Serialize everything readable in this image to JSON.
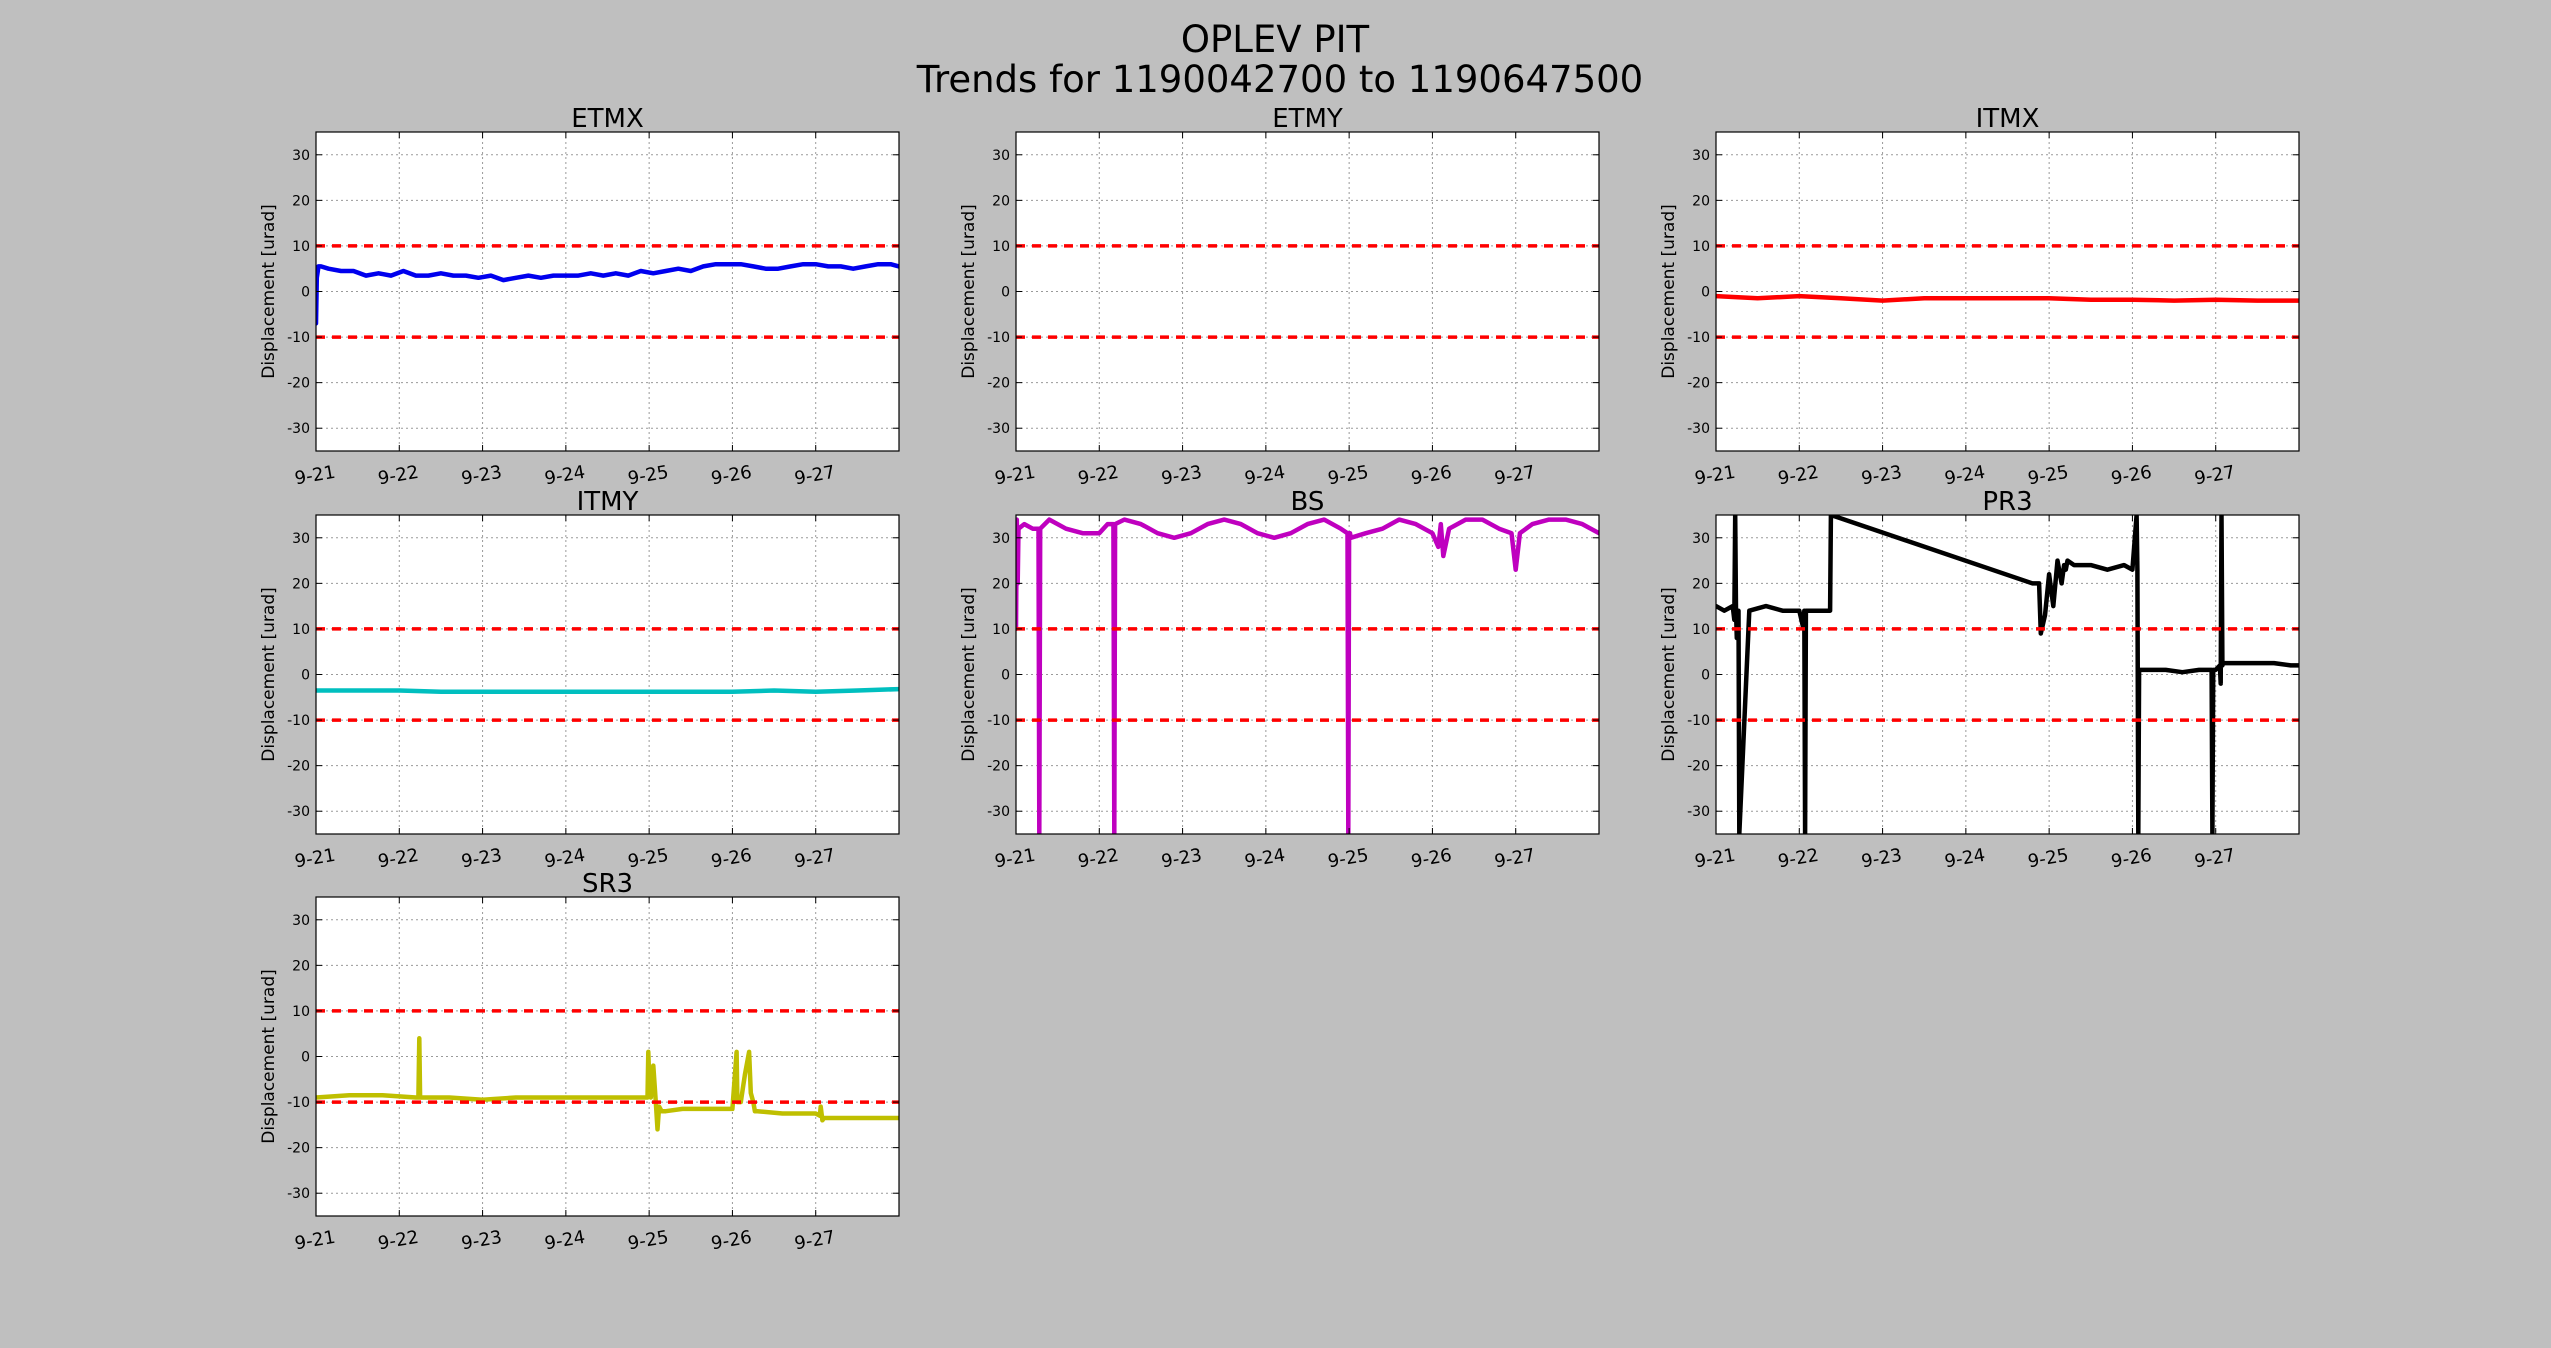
{
  "figure": {
    "title": "OPLEV PIT",
    "subtitle": "Trends for 1190042700 to 1190647500",
    "background": "#bfbfbf",
    "threshold_color": "#ff0000"
  },
  "chart_data": [
    {
      "type": "line",
      "title": "ETMX",
      "ylabel": "Displacement [urad]",
      "xlabel": "",
      "x_tick_labels": [
        "9-21",
        "9-22",
        "9-23",
        "9-24",
        "9-25",
        "9-26",
        "9-27"
      ],
      "x_ticks": [
        0,
        1,
        2,
        3,
        4,
        5,
        6
      ],
      "xlim": [
        0,
        7
      ],
      "x_unit": "days since 9-21",
      "ylim": [
        -35,
        35
      ],
      "y_ticks": [
        -30,
        -20,
        -10,
        0,
        10,
        20,
        30
      ],
      "grid": true,
      "thresholds": [
        10,
        -10
      ],
      "series": [
        {
          "color": "#0000ee",
          "x": [
            0,
            0.01,
            0.03,
            0.06,
            0.15,
            0.3,
            0.45,
            0.6,
            0.75,
            0.9,
            1.05,
            1.2,
            1.35,
            1.5,
            1.65,
            1.8,
            1.95,
            2.1,
            2.25,
            2.4,
            2.55,
            2.7,
            2.85,
            3.0,
            3.15,
            3.3,
            3.45,
            3.6,
            3.75,
            3.9,
            4.05,
            4.2,
            4.35,
            4.5,
            4.65,
            4.8,
            4.95,
            5.1,
            5.25,
            5.4,
            5.55,
            5.7,
            5.85,
            6.0,
            6.15,
            6.3,
            6.45,
            6.6,
            6.75,
            6.9,
            7.0
          ],
          "y": [
            -7,
            3,
            5.5,
            5.5,
            5,
            4.5,
            4.5,
            3.5,
            4,
            3.5,
            4.5,
            3.5,
            3.5,
            4,
            3.5,
            3.5,
            3,
            3.5,
            2.5,
            3,
            3.5,
            3,
            3.5,
            3.5,
            3.5,
            4,
            3.5,
            4,
            3.5,
            4.5,
            4,
            4.5,
            5,
            4.5,
            5.5,
            6,
            6,
            6,
            5.5,
            5,
            5,
            5.5,
            6,
            6,
            5.5,
            5.5,
            5,
            5.5,
            6,
            6,
            5.5
          ]
        }
      ]
    },
    {
      "type": "line",
      "title": "ETMY",
      "ylabel": "Displacement [urad]",
      "xlabel": "",
      "x_tick_labels": [
        "9-21",
        "9-22",
        "9-23",
        "9-24",
        "9-25",
        "9-26",
        "9-27"
      ],
      "x_ticks": [
        0,
        1,
        2,
        3,
        4,
        5,
        6
      ],
      "xlim": [
        0,
        7
      ],
      "x_unit": "days since 9-21",
      "ylim": [
        -35,
        35
      ],
      "y_ticks": [
        -30,
        -20,
        -10,
        0,
        10,
        20,
        30
      ],
      "grid": true,
      "thresholds": [
        10,
        -10
      ],
      "series": []
    },
    {
      "type": "line",
      "title": "ITMX",
      "ylabel": "Displacement [urad]",
      "xlabel": "",
      "x_tick_labels": [
        "9-21",
        "9-22",
        "9-23",
        "9-24",
        "9-25",
        "9-26",
        "9-27"
      ],
      "x_ticks": [
        0,
        1,
        2,
        3,
        4,
        5,
        6
      ],
      "xlim": [
        0,
        7
      ],
      "x_unit": "days since 9-21",
      "ylim": [
        -35,
        35
      ],
      "y_ticks": [
        -30,
        -20,
        -10,
        0,
        10,
        20,
        30
      ],
      "grid": true,
      "thresholds": [
        10,
        -10
      ],
      "series": [
        {
          "color": "#ff0000",
          "x": [
            0,
            0.5,
            1,
            1.5,
            2,
            2.5,
            3,
            3.5,
            4,
            4.5,
            5,
            5.5,
            6,
            6.5,
            7
          ],
          "y": [
            -1,
            -1.5,
            -1,
            -1.5,
            -2,
            -1.5,
            -1.5,
            -1.5,
            -1.5,
            -1.8,
            -1.8,
            -2,
            -1.8,
            -2,
            -2
          ]
        }
      ]
    },
    {
      "type": "line",
      "title": "ITMY",
      "ylabel": "Displacement [urad]",
      "xlabel": "",
      "x_tick_labels": [
        "9-21",
        "9-22",
        "9-23",
        "9-24",
        "9-25",
        "9-26",
        "9-27"
      ],
      "x_ticks": [
        0,
        1,
        2,
        3,
        4,
        5,
        6
      ],
      "xlim": [
        0,
        7
      ],
      "x_unit": "days since 9-21",
      "ylim": [
        -35,
        35
      ],
      "y_ticks": [
        -30,
        -20,
        -10,
        0,
        10,
        20,
        30
      ],
      "grid": true,
      "thresholds": [
        10,
        -10
      ],
      "series": [
        {
          "color": "#00bfbf",
          "x": [
            0,
            0.5,
            1,
            1.5,
            2,
            2.5,
            3,
            3.5,
            4,
            4.5,
            5,
            5.5,
            6,
            6.5,
            7
          ],
          "y": [
            -3.5,
            -3.5,
            -3.5,
            -3.8,
            -3.8,
            -3.8,
            -3.8,
            -3.8,
            -3.8,
            -3.8,
            -3.8,
            -3.5,
            -3.8,
            -3.5,
            -3.2
          ]
        }
      ]
    },
    {
      "type": "line",
      "title": "BS",
      "ylabel": "Displacement [urad]",
      "xlabel": "",
      "x_tick_labels": [
        "9-21",
        "9-22",
        "9-23",
        "9-24",
        "9-25",
        "9-26",
        "9-27"
      ],
      "x_ticks": [
        0,
        1,
        2,
        3,
        4,
        5,
        6
      ],
      "xlim": [
        0,
        7
      ],
      "x_unit": "days since 9-21",
      "ylim": [
        -35,
        35
      ],
      "y_ticks": [
        -30,
        -20,
        -10,
        0,
        10,
        20,
        30
      ],
      "grid": true,
      "thresholds": [
        10,
        -10
      ],
      "series": [
        {
          "color": "#bf00bf",
          "x": [
            0,
            0.01,
            0.02,
            0.03,
            0.1,
            0.2,
            0.27,
            0.28,
            0.29,
            0.4,
            0.6,
            0.8,
            1.0,
            1.1,
            1.17,
            1.18,
            1.19,
            1.3,
            1.5,
            1.7,
            1.9,
            2.1,
            2.3,
            2.5,
            2.7,
            2.9,
            3.1,
            3.3,
            3.5,
            3.7,
            3.9,
            3.98,
            3.99,
            4.0,
            4.01,
            4.02,
            4.2,
            4.4,
            4.6,
            4.8,
            5.0,
            5.07,
            5.1,
            5.13,
            5.2,
            5.4,
            5.6,
            5.8,
            5.95,
            6.0,
            6.05,
            6.2,
            6.4,
            6.6,
            6.8,
            7.0
          ],
          "y": [
            10,
            34,
            20,
            32,
            33,
            32,
            32,
            -35,
            32,
            34,
            32,
            31,
            31,
            33,
            33,
            -35,
            33,
            34,
            33,
            31,
            30,
            31,
            33,
            34,
            33,
            31,
            30,
            31,
            33,
            34,
            32,
            31,
            -35,
            31,
            31,
            30,
            31,
            32,
            34,
            33,
            31,
            28,
            33,
            26,
            32,
            34,
            34,
            32,
            31,
            23,
            31,
            33,
            34,
            34,
            33,
            31
          ]
        }
      ]
    },
    {
      "type": "line",
      "title": "PR3",
      "ylabel": "Displacement [urad]",
      "xlabel": "",
      "x_tick_labels": [
        "9-21",
        "9-22",
        "9-23",
        "9-24",
        "9-25",
        "9-26",
        "9-27"
      ],
      "x_ticks": [
        0,
        1,
        2,
        3,
        4,
        5,
        6
      ],
      "xlim": [
        0,
        7
      ],
      "x_unit": "days since 9-21",
      "ylim": [
        -35,
        35
      ],
      "y_ticks": [
        -30,
        -20,
        -10,
        0,
        10,
        20,
        30
      ],
      "grid": true,
      "thresholds": [
        10,
        -10
      ],
      "series": [
        {
          "color": "#000000",
          "x": [
            0,
            0.1,
            0.2,
            0.22,
            0.23,
            0.24,
            0.25,
            0.26,
            0.27,
            0.28,
            0.4,
            0.6,
            0.8,
            1.0,
            1.05,
            1.06,
            1.07,
            1.08,
            1.09,
            1.2,
            1.35,
            1.37,
            1.38,
            3.8,
            3.88,
            3.9,
            3.95,
            4.0,
            4.05,
            4.1,
            4.15,
            4.18,
            4.2,
            4.22,
            4.3,
            4.5,
            4.7,
            4.9,
            5.0,
            5.05,
            5.06,
            5.07,
            5.08,
            5.09,
            5.2,
            5.4,
            5.6,
            5.8,
            5.95,
            5.96,
            5.97,
            6.0,
            6.05,
            6.06,
            6.07,
            6.08,
            6.09,
            6.3,
            6.5,
            6.7,
            6.9,
            7.0
          ],
          "y": [
            15,
            14,
            15,
            12,
            35,
            14,
            8,
            14,
            14,
            -35,
            14,
            15,
            14,
            14,
            10,
            14,
            -35,
            14,
            14,
            14,
            14,
            14,
            35,
            20,
            20,
            9,
            13,
            22,
            15,
            25,
            20,
            24,
            23,
            25,
            24,
            24,
            23,
            24,
            23,
            35,
            23,
            -35,
            1,
            1,
            1,
            1,
            0.5,
            1,
            1,
            -35,
            1,
            1,
            2,
            -2,
            35,
            2,
            2.5,
            2.5,
            2.5,
            2.5,
            2,
            2
          ]
        }
      ]
    },
    {
      "type": "line",
      "title": "SR3",
      "ylabel": "Displacement [urad]",
      "xlabel": "",
      "x_tick_labels": [
        "9-21",
        "9-22",
        "9-23",
        "9-24",
        "9-25",
        "9-26",
        "9-27"
      ],
      "x_ticks": [
        0,
        1,
        2,
        3,
        4,
        5,
        6
      ],
      "xlim": [
        0,
        7
      ],
      "x_unit": "days since 9-21",
      "ylim": [
        -35,
        35
      ],
      "y_ticks": [
        -30,
        -20,
        -10,
        0,
        10,
        20,
        30
      ],
      "grid": true,
      "thresholds": [
        10,
        -10
      ],
      "series": [
        {
          "color": "#bfbf00",
          "x": [
            0,
            0.4,
            0.8,
            1.2,
            1.23,
            1.24,
            1.25,
            1.26,
            1.3,
            1.6,
            2.0,
            2.4,
            2.8,
            3.2,
            3.6,
            3.9,
            3.98,
            3.99,
            4.0,
            4.02,
            4.05,
            4.08,
            4.1,
            4.12,
            4.15,
            4.2,
            4.4,
            4.8,
            5.0,
            5.05,
            5.06,
            5.1,
            5.15,
            5.2,
            5.22,
            5.25,
            5.27,
            5.3,
            5.6,
            5.9,
            6.0,
            6.05,
            6.06,
            6.08,
            6.1,
            6.4,
            6.8,
            7.0
          ],
          "y": [
            -9,
            -8.5,
            -8.5,
            -9,
            -9,
            4,
            -9,
            -9,
            -9,
            -9,
            -9.5,
            -9,
            -9,
            -9,
            -9,
            -9,
            -9,
            1,
            -4,
            -9,
            -2,
            -10,
            -16,
            -11,
            -12,
            -12,
            -11.5,
            -11.5,
            -11.5,
            1,
            -10,
            -10,
            -4,
            1,
            -8,
            -10,
            -12,
            -12,
            -12.5,
            -12.5,
            -12.5,
            -13,
            -11,
            -14,
            -13.5,
            -13.5,
            -13.5,
            -13.5
          ]
        }
      ]
    }
  ]
}
